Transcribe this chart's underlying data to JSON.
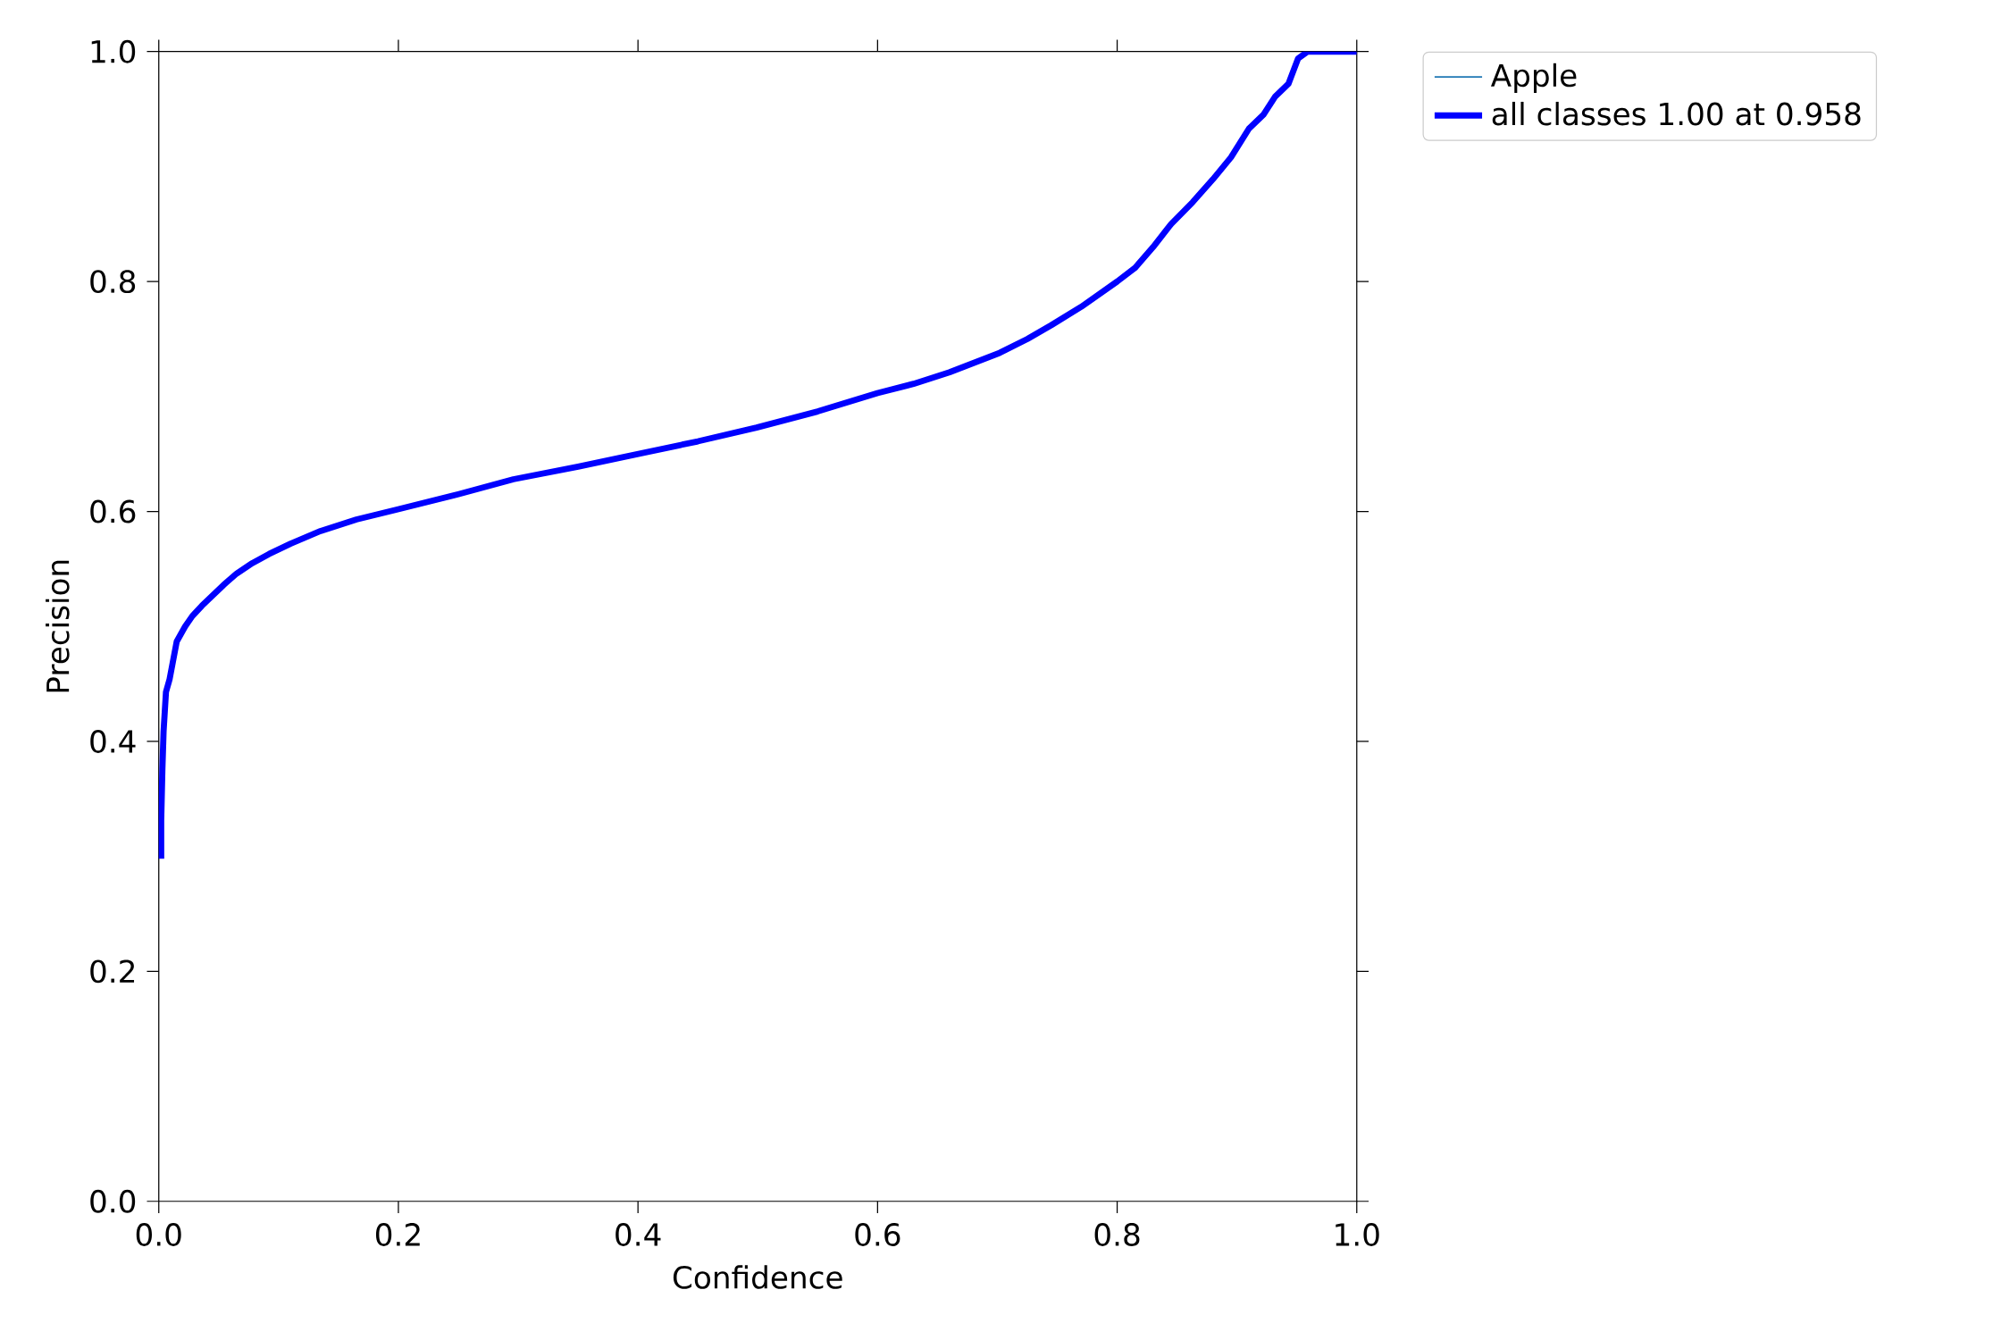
{
  "chart_data": {
    "type": "line",
    "xlabel": "Confidence",
    "ylabel": "Precision",
    "xlim": [
      0,
      1
    ],
    "ylim": [
      0,
      1
    ],
    "xticks": [
      {
        "value": 0,
        "label": "0.0"
      },
      {
        "value": 0.2,
        "label": "0.2"
      },
      {
        "value": 0.4,
        "label": "0.4"
      },
      {
        "value": 0.6,
        "label": "0.6"
      },
      {
        "value": 0.8,
        "label": "0.8"
      },
      {
        "value": 1,
        "label": "1.0"
      }
    ],
    "yticks": [
      {
        "value": 0,
        "label": "0.0"
      },
      {
        "value": 0.2,
        "label": "0.2"
      },
      {
        "value": 0.4,
        "label": "0.4"
      },
      {
        "value": 0.6,
        "label": "0.6"
      },
      {
        "value": 0.8,
        "label": "0.8"
      },
      {
        "value": 1,
        "label": "1.0"
      }
    ],
    "legend": "top right",
    "grid": false,
    "x": [
      0.002,
      0.002,
      0.003,
      0.004,
      0.006,
      0.009,
      0.015,
      0.022,
      0.028,
      0.036,
      0.044,
      0.054,
      0.065,
      0.078,
      0.092,
      0.11,
      0.135,
      0.165,
      0.2,
      0.25,
      0.296,
      0.35,
      0.4,
      0.45,
      0.499,
      0.55,
      0.6,
      0.63,
      0.66,
      0.702,
      0.725,
      0.745,
      0.77,
      0.8,
      0.815,
      0.83,
      0.845,
      0.863,
      0.88,
      0.895,
      0.91,
      0.922,
      0.932,
      0.943,
      0.951,
      0.959,
      0.98,
      1.0
    ],
    "series": [
      {
        "name": "Apple",
        "color": "#1f77b4",
        "values": [
          null,
          null,
          null,
          null,
          null,
          null,
          null,
          null,
          null,
          null,
          null,
          null,
          null,
          null,
          null,
          null,
          null,
          null,
          null,
          null,
          null,
          null,
          null,
          null,
          null,
          null,
          null,
          null,
          null,
          null,
          null,
          null,
          null,
          null,
          null,
          null,
          null,
          null,
          null,
          null,
          null,
          null,
          null,
          null,
          null,
          null,
          null,
          null
        ]
      },
      {
        "name": "all classes 1.00 at 0.958",
        "color": "#0000ff",
        "values": [
          0.298,
          0.331,
          0.376,
          0.409,
          0.443,
          0.454,
          0.487,
          0.5,
          0.509,
          0.518,
          0.526,
          0.536,
          0.546,
          0.555,
          0.563,
          0.572,
          0.583,
          0.593,
          0.602,
          0.615,
          0.628,
          0.639,
          0.65,
          0.661,
          0.673,
          0.687,
          0.703,
          0.711,
          0.721,
          0.738,
          0.75,
          0.762,
          0.778,
          0.8,
          0.812,
          0.83,
          0.85,
          0.869,
          0.889,
          0.908,
          0.933,
          0.945,
          0.961,
          0.972,
          0.994,
          1.0,
          1.0,
          1.0
        ]
      }
    ]
  }
}
